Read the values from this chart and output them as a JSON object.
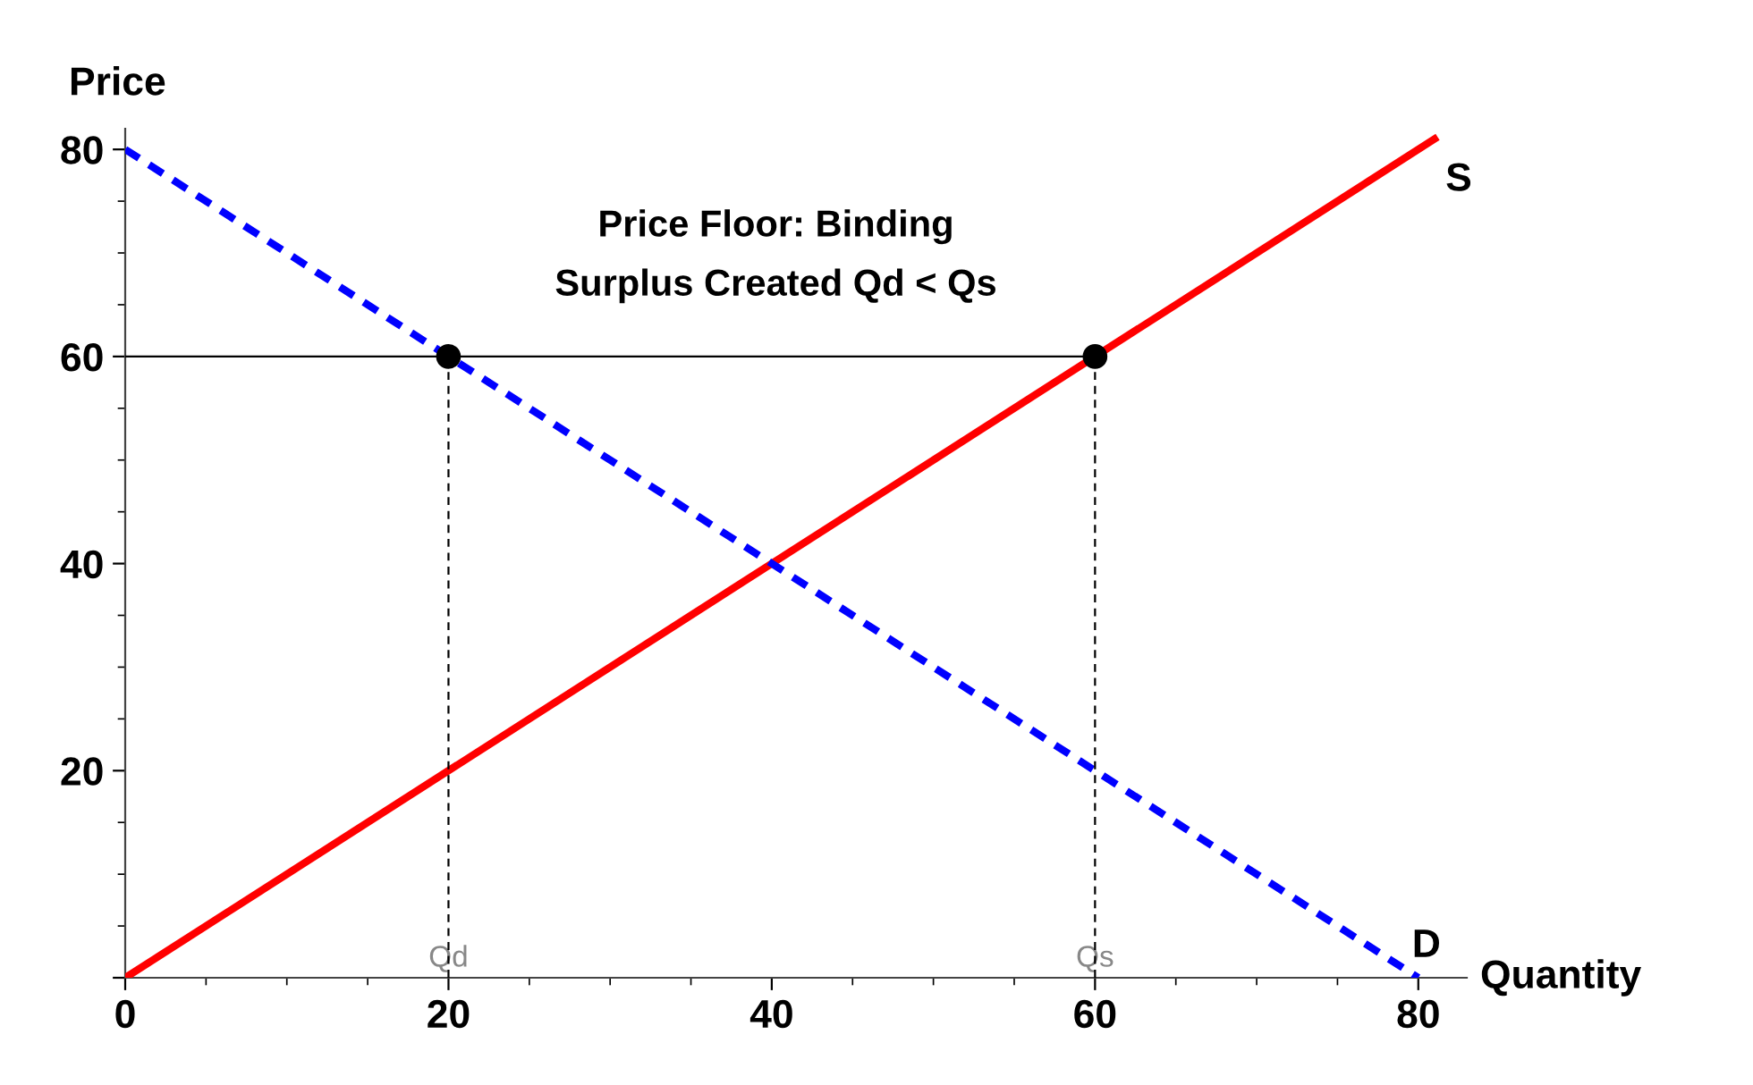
{
  "chart_data": {
    "type": "line",
    "title": "Price Floor: Binding\nSurplus Created Qd < Qs",
    "xlabel": "Quantity",
    "ylabel": "Price",
    "xlim": [
      0,
      83
    ],
    "ylim": [
      0,
      82
    ],
    "xticks": [
      0,
      20,
      40,
      60,
      80
    ],
    "yticks": [
      {
        "value": 0,
        "label": null
      },
      20,
      40,
      60,
      80
    ],
    "grid": false,
    "legend": false,
    "series": [
      {
        "name": "S",
        "color": "#ff0000",
        "x": [
          0,
          81
        ],
        "values": [
          0,
          81
        ],
        "line_style": "solid"
      },
      {
        "name": "D",
        "color": "#0000ff",
        "x": [
          0,
          80
        ],
        "values": [
          80,
          0
        ],
        "line_style": "dotted"
      },
      {
        "color": "#000000",
        "x": [
          0,
          60
        ],
        "values": [
          60,
          60
        ],
        "line_style": "solid"
      },
      {
        "color": "#000000",
        "x": [
          20,
          20
        ],
        "values": [
          0,
          60
        ],
        "line_style": "dashed"
      },
      {
        "color": "#000000",
        "x": [
          60,
          60
        ],
        "values": [
          0,
          60
        ],
        "line_style": "dashed"
      },
      {
        "type": "scatter",
        "color": "#000000",
        "x": [
          20,
          60
        ],
        "values": [
          60,
          60
        ],
        "marker": "circle"
      }
    ],
    "annotations": [
      {
        "text": "Qd",
        "x": 20,
        "y": 0
      },
      {
        "text": "Qs",
        "x": 60,
        "y": 0
      }
    ]
  }
}
